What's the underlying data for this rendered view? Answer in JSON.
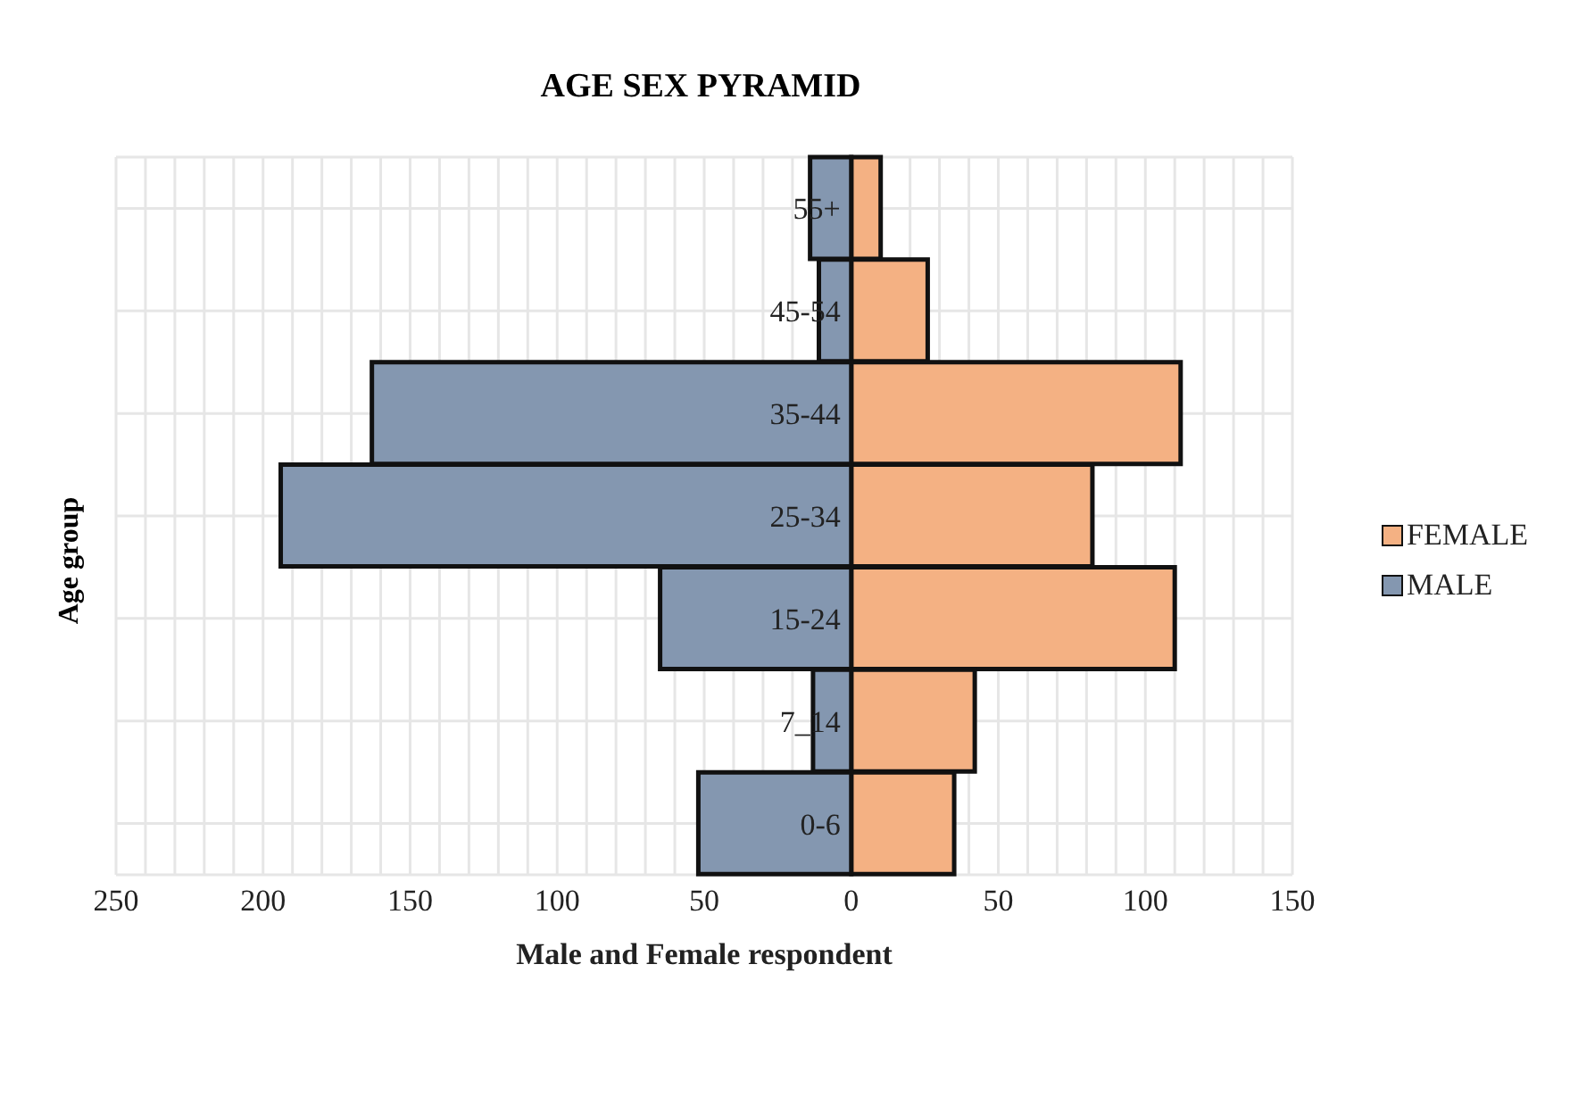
{
  "chart_data": {
    "type": "bar",
    "orientation": "horizontal",
    "stacked": true,
    "title": "AGE SEX PYRAMID",
    "xlabel": "Male and Female respondent",
    "ylabel": "Age group",
    "categories": [
      "55+",
      "45-54",
      "35-44",
      "25-34",
      "15-24",
      "7_14",
      "0-6"
    ],
    "series": [
      {
        "name": "FEMALE",
        "color": "#f4b183",
        "values": [
          10,
          26,
          112,
          82,
          110,
          42,
          35
        ]
      },
      {
        "name": "MALE",
        "color": "#8497b0",
        "values": [
          -14,
          -11,
          -163,
          -194,
          -65,
          -13,
          -52
        ]
      }
    ],
    "xlim": [
      -250,
      150
    ],
    "xticks": [
      {
        "value": -250,
        "label": "250"
      },
      {
        "value": -240,
        "label": null
      },
      {
        "value": -230,
        "label": null
      },
      {
        "value": -220,
        "label": null
      },
      {
        "value": -210,
        "label": null
      },
      {
        "value": -200,
        "label": "200"
      },
      {
        "value": -190,
        "label": null
      },
      {
        "value": -180,
        "label": null
      },
      {
        "value": -170,
        "label": null
      },
      {
        "value": -160,
        "label": null
      },
      {
        "value": -150,
        "label": "150"
      },
      {
        "value": -140,
        "label": null
      },
      {
        "value": -130,
        "label": null
      },
      {
        "value": -120,
        "label": null
      },
      {
        "value": -110,
        "label": null
      },
      {
        "value": -100,
        "label": "100"
      },
      {
        "value": -90,
        "label": null
      },
      {
        "value": -80,
        "label": null
      },
      {
        "value": -70,
        "label": null
      },
      {
        "value": -60,
        "label": null
      },
      {
        "value": -50,
        "label": "50"
      },
      {
        "value": -40,
        "label": null
      },
      {
        "value": -30,
        "label": null
      },
      {
        "value": -20,
        "label": null
      },
      0,
      {
        "value": 20,
        "label": null
      },
      {
        "value": 30,
        "label": null
      },
      {
        "value": 40,
        "label": null
      },
      50,
      {
        "value": 60,
        "label": null
      },
      {
        "value": 70,
        "label": null
      },
      {
        "value": 80,
        "label": null
      },
      {
        "value": 90,
        "label": null
      },
      100,
      {
        "value": 110,
        "label": null
      },
      {
        "value": 120,
        "label": null
      },
      {
        "value": 130,
        "label": null
      },
      {
        "value": 140,
        "label": null
      },
      150
    ],
    "grid": true,
    "legend": "right"
  }
}
